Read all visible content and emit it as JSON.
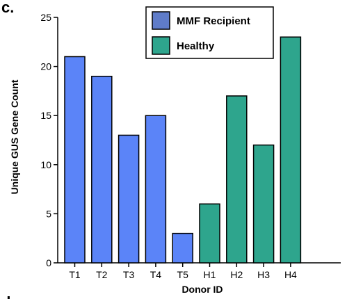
{
  "panel_labels": {
    "top": "c.",
    "bottom": "d"
  },
  "chart_data": {
    "type": "bar",
    "xlabel": "Donor ID",
    "ylabel": "Unique GUS Gene Count",
    "ylim": [
      0,
      25
    ],
    "yticks": [
      0,
      5,
      10,
      15,
      20,
      25
    ],
    "grid": false,
    "legend_position": "top-center",
    "categories": [
      "T1",
      "T2",
      "T3",
      "T4",
      "T5",
      "H1",
      "H2",
      "H3",
      "H4"
    ],
    "values": [
      21,
      19,
      13,
      15,
      3,
      6,
      17,
      12,
      23
    ],
    "groups": [
      "MMF Recipient",
      "MMF Recipient",
      "MMF Recipient",
      "MMF Recipient",
      "MMF Recipient",
      "Healthy",
      "Healthy",
      "Healthy",
      "Healthy"
    ],
    "legend": [
      {
        "name": "MMF Recipient",
        "color": "#5b84f8",
        "legend_color": "#5f7cc9"
      },
      {
        "name": "Healthy",
        "color": "#2ea58d",
        "legend_color": "#2ea58d"
      }
    ]
  }
}
